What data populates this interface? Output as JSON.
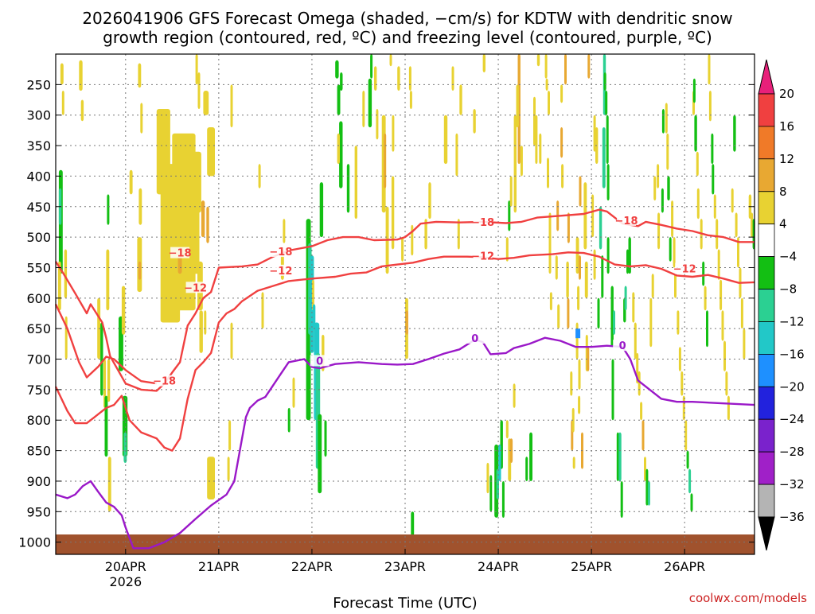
{
  "chart_data": {
    "type": "heatmap",
    "title_line1": "2026041906 GFS Forecast Omega (shaded, −cm/s) for KDTW with dendritic snow",
    "title_line2": "growth region (contoured, red, ºC) and freezing level (contoured, purple, ºC)",
    "xlabel": "Forecast Time (UTC)",
    "credit": "coolwx.com/models",
    "x_ticks": [
      {
        "label": "20APR",
        "sublabel": "2026",
        "hours": 18
      },
      {
        "label": "21APR",
        "sublabel": "",
        "hours": 42
      },
      {
        "label": "22APR",
        "sublabel": "",
        "hours": 66
      },
      {
        "label": "23APR",
        "sublabel": "",
        "hours": 90
      },
      {
        "label": "24APR",
        "sublabel": "",
        "hours": 114
      },
      {
        "label": "25APR",
        "sublabel": "",
        "hours": 138
      },
      {
        "label": "26APR",
        "sublabel": "",
        "hours": 162
      }
    ],
    "x_range_hours": [
      0,
      180
    ],
    "y_ticks": [
      {
        "label": "250",
        "p": 250
      },
      {
        "label": "300",
        "p": 300
      },
      {
        "label": "350",
        "p": 350
      },
      {
        "label": "400",
        "p": 400
      },
      {
        "label": "450",
        "p": 450
      },
      {
        "label": "500",
        "p": 500
      },
      {
        "label": "550",
        "p": 550
      },
      {
        "label": "600",
        "p": 600
      },
      {
        "label": "650",
        "p": 650
      },
      {
        "label": "700",
        "p": 700
      },
      {
        "label": "750",
        "p": 750
      },
      {
        "label": "800",
        "p": 800
      },
      {
        "label": "850",
        "p": 850
      },
      {
        "label": "900",
        "p": 900
      },
      {
        "label": "950",
        "p": 950
      },
      {
        "label": "1000",
        "p": 1000
      }
    ],
    "y_range_hpa": [
      200,
      1020
    ],
    "colorbar": {
      "labels": [
        "20",
        "16",
        "12",
        "8",
        "4",
        "−4",
        "−8",
        "−12",
        "−16",
        "−20",
        "−24",
        "−28",
        "−32",
        "−36"
      ],
      "colors": [
        "#e8207a",
        "#f04040",
        "#f07a28",
        "#e8a832",
        "#e8d232",
        "#ffffff",
        "#13bf13",
        "#2bd092",
        "#22c8c8",
        "#1e90ff",
        "#2222dd",
        "#7a22cc",
        "#a020c8",
        "#b4b4b4",
        "#000000"
      ]
    },
    "colors": {
      "yellow": "#e8d232",
      "orange": "#e8a832",
      "dkorange": "#f07a28",
      "green": "#13bf13",
      "teal": "#2bd092",
      "cyan": "#22c8c8",
      "blue": "#1e90ff",
      "red_contour": "#f04040",
      "purple_contour": "#9a18c8",
      "terrain": "#a0522d"
    },
    "contours": [
      {
        "name": "minus18-upper",
        "color": "red",
        "label": "−18",
        "label_positions": [
          [
            32,
            528
          ],
          [
            58,
            526
          ],
          [
            110,
            478
          ],
          [
            147,
            475
          ]
        ],
        "points": [
          [
            0,
            540
          ],
          [
            2,
            560
          ],
          [
            5,
            592
          ],
          [
            8,
            625
          ],
          [
            9,
            610
          ],
          [
            12,
            640
          ],
          [
            13,
            665
          ],
          [
            14,
            695
          ],
          [
            18,
            740
          ],
          [
            22,
            750
          ],
          [
            26,
            752
          ],
          [
            28,
            740
          ],
          [
            30,
            722
          ],
          [
            32,
            705
          ],
          [
            34,
            645
          ],
          [
            36,
            625
          ],
          [
            38,
            600
          ],
          [
            40,
            590
          ],
          [
            42,
            550
          ],
          [
            48,
            548
          ],
          [
            52,
            545
          ],
          [
            56,
            532
          ],
          [
            60,
            522
          ],
          [
            66,
            515
          ],
          [
            70,
            505
          ],
          [
            74,
            500
          ],
          [
            78,
            500
          ],
          [
            82,
            505
          ],
          [
            88,
            504
          ],
          [
            90,
            500
          ],
          [
            92,
            490
          ],
          [
            94,
            478
          ],
          [
            98,
            475
          ],
          [
            104,
            476
          ],
          [
            110,
            475
          ],
          [
            116,
            477
          ],
          [
            120,
            475
          ],
          [
            124,
            468
          ],
          [
            130,
            465
          ],
          [
            136,
            462
          ],
          [
            140,
            455
          ],
          [
            142,
            458
          ],
          [
            146,
            478
          ],
          [
            150,
            482
          ],
          [
            152,
            475
          ],
          [
            156,
            480
          ],
          [
            160,
            486
          ],
          [
            164,
            490
          ],
          [
            168,
            497
          ],
          [
            172,
            500
          ],
          [
            176,
            508
          ],
          [
            180,
            508
          ]
        ]
      },
      {
        "name": "minus12-lower",
        "color": "red",
        "label": "−12",
        "label_positions": [
          [
            36,
            585
          ],
          [
            58,
            557
          ],
          [
            110,
            533
          ],
          [
            162,
            554
          ]
        ],
        "points": [
          [
            0,
            745
          ],
          [
            3,
            785
          ],
          [
            5,
            805
          ],
          [
            8,
            805
          ],
          [
            10,
            795
          ],
          [
            13,
            780
          ],
          [
            15,
            775
          ],
          [
            17,
            760
          ],
          [
            19,
            800
          ],
          [
            22,
            820
          ],
          [
            26,
            830
          ],
          [
            28,
            845
          ],
          [
            30,
            850
          ],
          [
            32,
            830
          ],
          [
            34,
            765
          ],
          [
            36,
            718
          ],
          [
            38,
            705
          ],
          [
            40,
            690
          ],
          [
            42,
            640
          ],
          [
            44,
            625
          ],
          [
            46,
            618
          ],
          [
            48,
            605
          ],
          [
            52,
            588
          ],
          [
            56,
            580
          ],
          [
            60,
            572
          ],
          [
            66,
            568
          ],
          [
            72,
            565
          ],
          [
            76,
            560
          ],
          [
            80,
            558
          ],
          [
            84,
            548
          ],
          [
            88,
            545
          ],
          [
            92,
            542
          ],
          [
            96,
            536
          ],
          [
            100,
            532
          ],
          [
            106,
            532
          ],
          [
            110,
            533
          ],
          [
            114,
            536
          ],
          [
            118,
            534
          ],
          [
            122,
            530
          ],
          [
            128,
            528
          ],
          [
            132,
            525
          ],
          [
            136,
            526
          ],
          [
            140,
            532
          ],
          [
            144,
            545
          ],
          [
            148,
            548
          ],
          [
            152,
            546
          ],
          [
            156,
            552
          ],
          [
            160,
            563
          ],
          [
            164,
            565
          ],
          [
            168,
            562
          ],
          [
            172,
            568
          ],
          [
            176,
            575
          ],
          [
            180,
            574
          ]
        ]
      },
      {
        "name": "minus18-lower",
        "color": "red",
        "label": "−18",
        "label_positions": [
          [
            28,
            738
          ]
        ],
        "points": [
          [
            0,
            610
          ],
          [
            3,
            650
          ],
          [
            6,
            705
          ],
          [
            8,
            730
          ],
          [
            11,
            712
          ],
          [
            13,
            696
          ],
          [
            15,
            700
          ],
          [
            18,
            718
          ],
          [
            22,
            736
          ],
          [
            26,
            740
          ]
        ]
      },
      {
        "name": "freezing-level",
        "color": "purple",
        "label": "0",
        "label_positions": [
          [
            68,
            705
          ],
          [
            108,
            668
          ],
          [
            146,
            680
          ]
        ],
        "points": [
          [
            0,
            922
          ],
          [
            3,
            928
          ],
          [
            5,
            922
          ],
          [
            7,
            908
          ],
          [
            9,
            900
          ],
          [
            11,
            918
          ],
          [
            13,
            935
          ],
          [
            15,
            942
          ],
          [
            17,
            956
          ],
          [
            18,
            976
          ],
          [
            20,
            1010
          ],
          [
            24,
            1010
          ],
          [
            28,
            1000
          ],
          [
            32,
            985
          ],
          [
            36,
            962
          ],
          [
            40,
            940
          ],
          [
            44,
            922
          ],
          [
            46,
            900
          ],
          [
            48,
            830
          ],
          [
            49,
            795
          ],
          [
            50,
            780
          ],
          [
            52,
            768
          ],
          [
            54,
            762
          ],
          [
            58,
            724
          ],
          [
            60,
            705
          ],
          [
            64,
            700
          ],
          [
            66,
            713
          ],
          [
            68,
            715
          ],
          [
            72,
            708
          ],
          [
            78,
            705
          ],
          [
            84,
            708
          ],
          [
            88,
            709
          ],
          [
            92,
            708
          ],
          [
            96,
            700
          ],
          [
            100,
            691
          ],
          [
            104,
            684
          ],
          [
            108,
            668
          ],
          [
            110,
            672
          ],
          [
            112,
            692
          ],
          [
            116,
            690
          ],
          [
            118,
            682
          ],
          [
            122,
            675
          ],
          [
            126,
            665
          ],
          [
            130,
            670
          ],
          [
            134,
            680
          ],
          [
            138,
            680
          ],
          [
            142,
            678
          ],
          [
            146,
            680
          ],
          [
            148,
            700
          ],
          [
            150,
            735
          ],
          [
            152,
            745
          ],
          [
            156,
            765
          ],
          [
            160,
            770
          ],
          [
            164,
            770
          ],
          [
            180,
            775
          ]
        ]
      }
    ]
  }
}
